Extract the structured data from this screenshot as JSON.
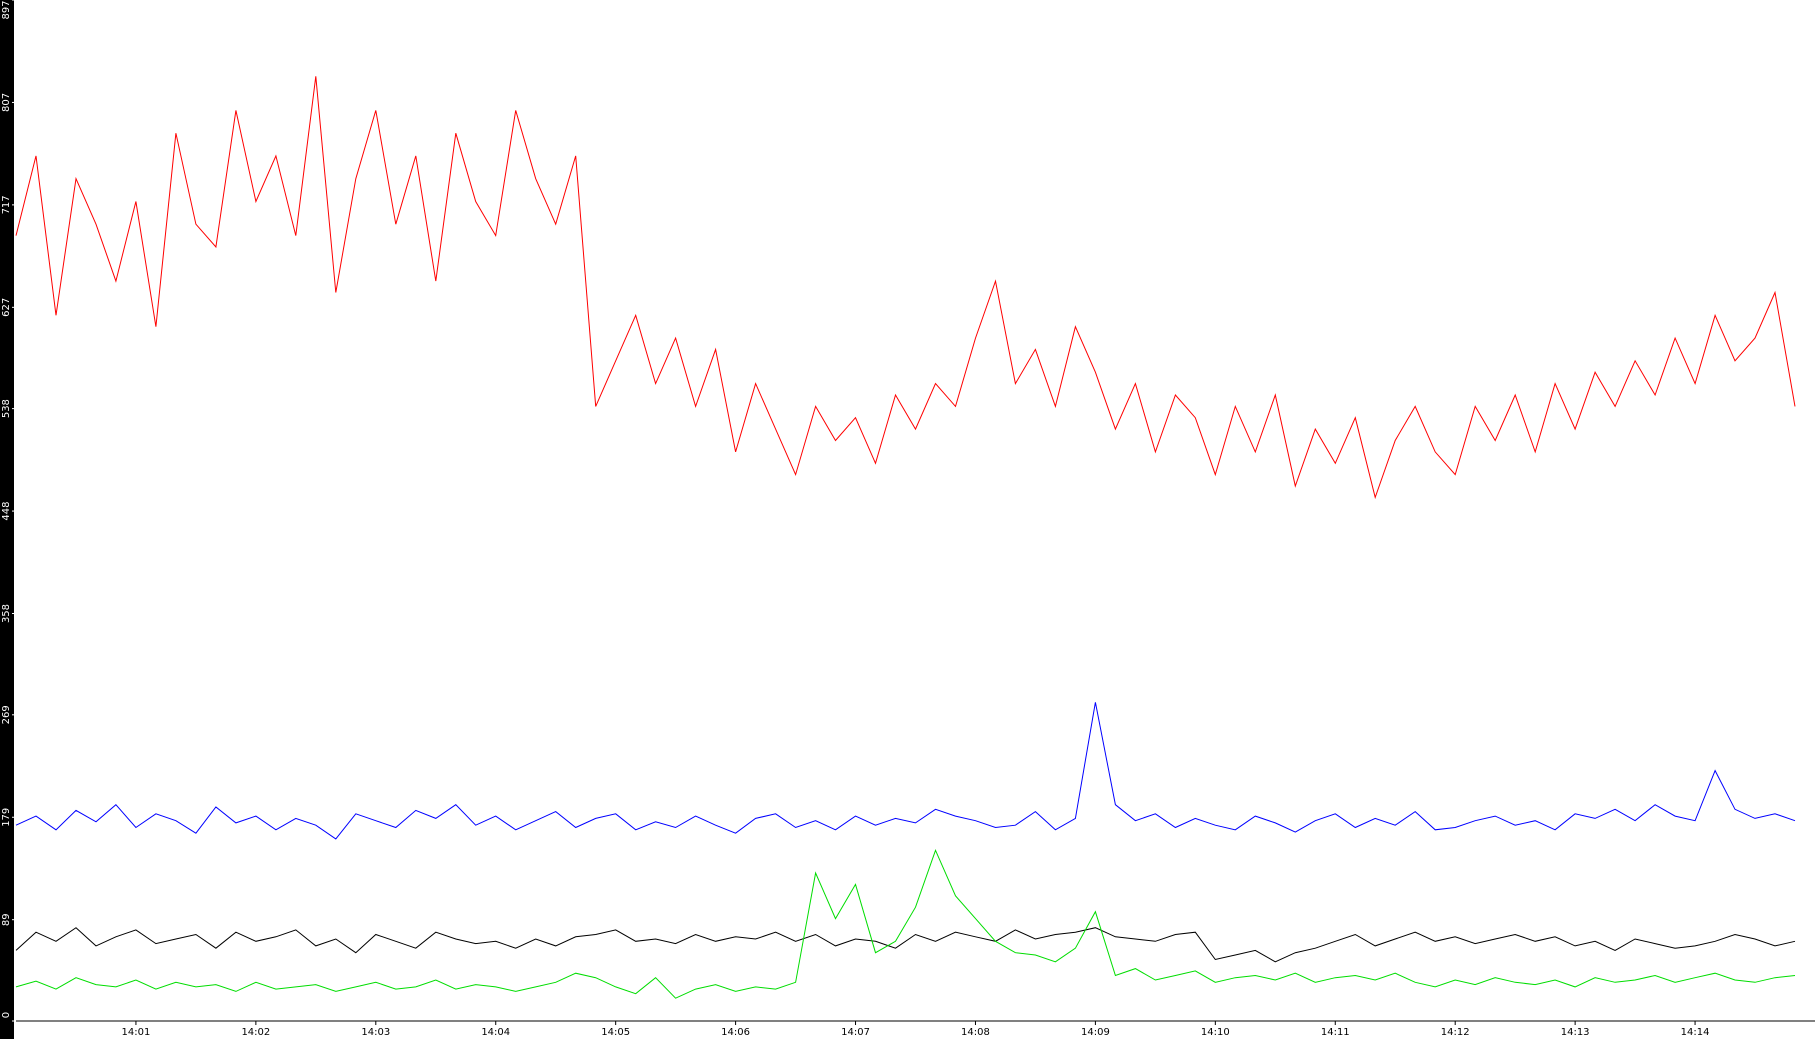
{
  "chart_data": {
    "type": "line",
    "categories": [
      null,
      null,
      null,
      null,
      null,
      null,
      "14:01",
      null,
      null,
      null,
      null,
      null,
      "14:02",
      null,
      null,
      null,
      null,
      null,
      "14:03",
      null,
      null,
      null,
      null,
      null,
      "14:04",
      null,
      null,
      null,
      null,
      null,
      "14:05",
      null,
      null,
      null,
      null,
      null,
      "14:06",
      null,
      null,
      null,
      null,
      null,
      "14:07",
      null,
      null,
      null,
      null,
      null,
      "14:08",
      null,
      null,
      null,
      null,
      null,
      "14:09",
      null,
      null,
      null,
      null,
      null,
      "14:10",
      null,
      null,
      null,
      null,
      null,
      "14:11",
      null,
      null,
      null,
      null,
      null,
      "14:12",
      null,
      null,
      null,
      null,
      null,
      "14:13",
      null,
      null,
      null,
      null,
      null,
      "14:14",
      null,
      null,
      null,
      null,
      null
    ],
    "ylim": [
      0,
      897
    ],
    "yticks": [
      0,
      89,
      179,
      269,
      358,
      448,
      538,
      627,
      717,
      807,
      897
    ],
    "series": [
      {
        "color": "#ff0000",
        "values": [
          690,
          760,
          620,
          740,
          700,
          650,
          720,
          610,
          780,
          700,
          680,
          800,
          720,
          760,
          690,
          830,
          640,
          740,
          800,
          700,
          760,
          650,
          780,
          720,
          690,
          800,
          740,
          700,
          760,
          540,
          580,
          620,
          560,
          600,
          540,
          590,
          500,
          560,
          520,
          480,
          540,
          510,
          530,
          490,
          550,
          520,
          560,
          540,
          600,
          650,
          560,
          590,
          540,
          610,
          570,
          520,
          560,
          500,
          550,
          530,
          480,
          540,
          500,
          550,
          470,
          520,
          490,
          530,
          460,
          510,
          540,
          500,
          480,
          540,
          510,
          550,
          500,
          560,
          520,
          570,
          540,
          580,
          550,
          600,
          560,
          620,
          580,
          600,
          640,
          540
        ]
      },
      {
        "color": "#0000ff",
        "values": [
          172,
          180,
          168,
          185,
          175,
          190,
          170,
          182,
          176,
          165,
          188,
          174,
          180,
          168,
          178,
          172,
          160,
          182,
          176,
          170,
          185,
          178,
          190,
          172,
          180,
          168,
          176,
          184,
          170,
          178,
          182,
          168,
          175,
          170,
          180,
          172,
          165,
          178,
          182,
          170,
          176,
          168,
          180,
          172,
          178,
          174,
          186,
          180,
          176,
          170,
          172,
          184,
          168,
          178,
          280,
          190,
          176,
          182,
          170,
          178,
          172,
          168,
          180,
          174,
          166,
          176,
          182,
          170,
          178,
          172,
          184,
          168,
          170,
          176,
          180,
          172,
          176,
          168,
          182,
          178,
          186,
          176,
          190,
          180,
          176,
          220,
          186,
          178,
          182,
          176
        ]
      },
      {
        "color": "#000000",
        "values": [
          62,
          78,
          70,
          82,
          66,
          74,
          80,
          68,
          72,
          76,
          64,
          78,
          70,
          74,
          80,
          66,
          72,
          60,
          76,
          70,
          64,
          78,
          72,
          68,
          70,
          64,
          72,
          66,
          74,
          76,
          80,
          70,
          72,
          68,
          76,
          70,
          74,
          72,
          78,
          70,
          76,
          66,
          72,
          70,
          64,
          76,
          70,
          78,
          74,
          70,
          80,
          72,
          76,
          78,
          82,
          74,
          72,
          70,
          76,
          78,
          54,
          58,
          62,
          52,
          60,
          64,
          70,
          76,
          66,
          72,
          78,
          70,
          74,
          68,
          72,
          76,
          70,
          74,
          66,
          70,
          62,
          72,
          68,
          64,
          66,
          70,
          76,
          72,
          66,
          70
        ]
      },
      {
        "color": "#00dd00",
        "values": [
          30,
          35,
          28,
          38,
          32,
          30,
          36,
          28,
          34,
          30,
          32,
          26,
          34,
          28,
          30,
          32,
          26,
          30,
          34,
          28,
          30,
          36,
          28,
          32,
          30,
          26,
          30,
          34,
          42,
          38,
          30,
          24,
          38,
          20,
          28,
          32,
          26,
          30,
          28,
          34,
          130,
          90,
          120,
          60,
          70,
          100,
          150,
          110,
          90,
          70,
          60,
          58,
          52,
          64,
          96,
          40,
          46,
          36,
          40,
          44,
          34,
          38,
          40,
          36,
          42,
          34,
          38,
          40,
          36,
          42,
          34,
          30,
          36,
          32,
          38,
          34,
          32,
          36,
          30,
          38,
          34,
          36,
          40,
          34,
          38,
          42,
          36,
          34,
          38,
          40
        ]
      }
    ]
  }
}
